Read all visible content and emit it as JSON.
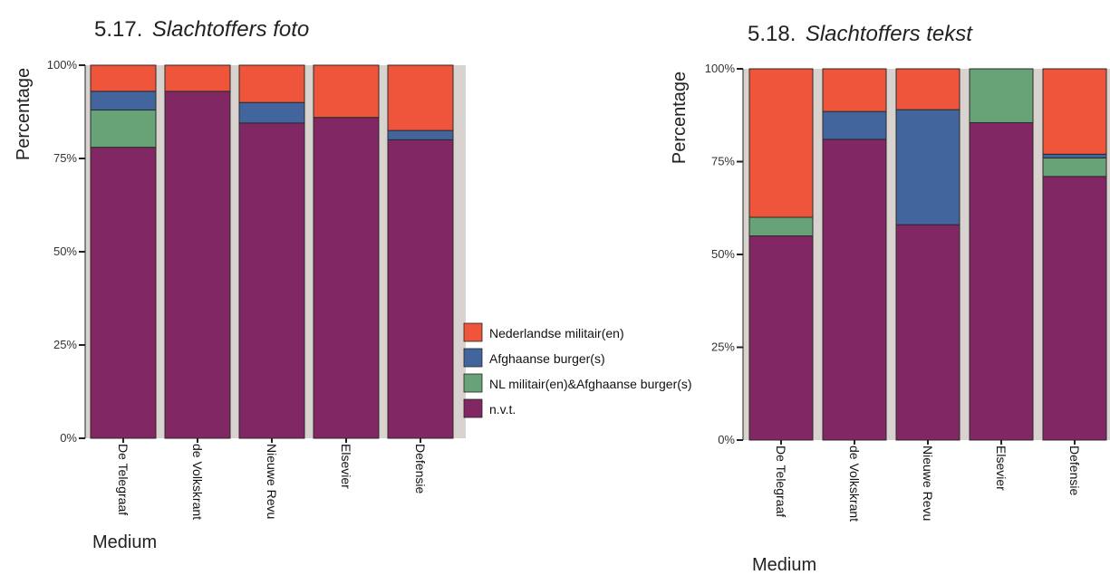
{
  "legend": {
    "items": [
      {
        "label": "Nederlandse militair(en)",
        "color": "#ee553a"
      },
      {
        "label": "Afghaanse burger(s)",
        "color": "#42659e"
      },
      {
        "label": "NL militair(en)&Afghaanse burger(s)",
        "color": "#68a378"
      },
      {
        "label": "n.v.t.",
        "color": "#812764"
      }
    ]
  },
  "chart_data": [
    {
      "type": "bar",
      "stacked": true,
      "title_number": "5.17.",
      "title": "Slachtoffers foto",
      "xlabel": "Medium",
      "ylabel": "Percentage",
      "ylim": [
        0,
        100
      ],
      "yticks": [
        "0%",
        "25%",
        "50%",
        "75%",
        "100%"
      ],
      "categories": [
        "De Telegraaf",
        "de Volkskrant",
        "Nieuwe Revu",
        "Elsevier",
        "Defensie"
      ],
      "series": [
        {
          "name": "n.v.t.",
          "values": [
            78,
            93,
            84.5,
            86,
            80
          ]
        },
        {
          "name": "NL militair(en)&Afghaanse burger(s)",
          "values": [
            10,
            0,
            0,
            0,
            0
          ]
        },
        {
          "name": "Afghaanse burger(s)",
          "values": [
            5,
            0,
            5.5,
            0,
            2.5
          ]
        },
        {
          "name": "Nederlandse militair(en)",
          "values": [
            7,
            7,
            10,
            14,
            17.5
          ]
        }
      ]
    },
    {
      "type": "bar",
      "stacked": true,
      "title_number": "5.18.",
      "title": "Slachtoffers tekst",
      "xlabel": "Medium",
      "ylabel": "Percentage",
      "ylim": [
        0,
        100
      ],
      "yticks": [
        "0%",
        "25%",
        "50%",
        "75%",
        "100%"
      ],
      "categories": [
        "De Telegraaf",
        "de Volkskrant",
        "Nieuwe Revu",
        "Elsevier",
        "Defensie"
      ],
      "series": [
        {
          "name": "n.v.t.",
          "values": [
            55,
            81,
            58,
            85.5,
            71
          ]
        },
        {
          "name": "NL militair(en)&Afghaanse burger(s)",
          "values": [
            5,
            0,
            0,
            14.5,
            5
          ]
        },
        {
          "name": "Afghaanse burger(s)",
          "values": [
            0,
            7.5,
            31,
            0,
            1
          ]
        },
        {
          "name": "Nederlandse militair(en)",
          "values": [
            40,
            11.5,
            11,
            0,
            23
          ]
        }
      ]
    }
  ]
}
